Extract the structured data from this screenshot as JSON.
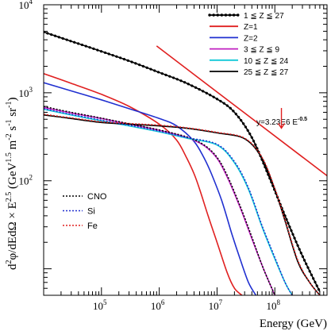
{
  "chart_data": {
    "type": "line",
    "xlabel": "Energy (GeV)",
    "ylabel": {
      "main": "d",
      "sup1": "2",
      "mid": "φ/dEdΩ × E",
      "sup2": "2.5",
      "unit_open": " (GeV",
      "sup3": "1.5",
      "u2": " m",
      "sup4": "-2",
      "u3": " s",
      "sup5": "-1",
      "u4": " sr",
      "sup6": "-1",
      "unit_close": ")"
    },
    "x_scale": "log",
    "y_scale": "log",
    "xlim": [
      10000,
      800000000
    ],
    "ylim": [
      5,
      10000
    ],
    "x_ticks": [
      {
        "value": 100000,
        "base": "10",
        "exp": "5"
      },
      {
        "value": 1000000,
        "base": "10",
        "exp": "6"
      },
      {
        "value": 10000000,
        "base": "10",
        "exp": "7"
      },
      {
        "value": 100000000,
        "base": "10",
        "exp": "8"
      }
    ],
    "y_ticks": [
      {
        "value": 100,
        "base": "10",
        "exp": "2"
      },
      {
        "value": 1000,
        "base": "10",
        "exp": "3"
      },
      {
        "value": 10000,
        "base": "10",
        "exp": "4"
      }
    ],
    "annotation": {
      "text": "y=3.23E6 E",
      "exp": "-0.5",
      "arrow_x": 130000000,
      "arrow_y_from": 700,
      "arrow_y_to": 350
    },
    "legend_top": [
      {
        "label": "1 ≦ Z ≦ 27",
        "color": "#000000",
        "style": "dotted-solid"
      },
      {
        "label": "Z=1",
        "color": "#e02020",
        "style": "solid"
      },
      {
        "label": "Z=2",
        "color": "#2030d0",
        "style": "solid"
      },
      {
        "label": "3 ≦ Z ≦ 9",
        "color": "#c020c0",
        "style": "solid"
      },
      {
        "label": "10 ≦ Z ≦ 24",
        "color": "#10c8d8",
        "style": "solid"
      },
      {
        "label": "25 ≦ Z ≦ 27",
        "color": "#000000",
        "style": "solid"
      }
    ],
    "legend_bottom": [
      {
        "label": "CNO",
        "color": "#000000",
        "style": "dotted"
      },
      {
        "label": "Si",
        "color": "#2030d0",
        "style": "dotted"
      },
      {
        "label": "Fe",
        "color": "#e02020",
        "style": "dotted"
      }
    ],
    "series": [
      {
        "name": "1 ≦ Z ≦ 27",
        "color": "#000000",
        "style": "dotted-solid",
        "x": [
          10000,
          30000,
          100000,
          300000,
          1000000,
          3000000,
          10000000,
          20000000,
          40000000,
          80000000,
          150000000,
          300000000,
          600000000
        ],
        "y": [
          4900,
          3850,
          2950,
          2300,
          1700,
          1280,
          850,
          600,
          310,
          110,
          40,
          14,
          5.5
        ]
      },
      {
        "name": "Z=1",
        "color": "#e02020",
        "style": "solid",
        "x": [
          10000,
          30000,
          100000,
          300000,
          1000000,
          2000000,
          3000000,
          4000000,
          5000000,
          7000000,
          10000000,
          15000000,
          20000000,
          27000000
        ],
        "y": [
          1650,
          1280,
          960,
          700,
          440,
          290,
          180,
          120,
          80,
          40,
          20,
          9,
          6,
          5
        ]
      },
      {
        "name": "Z=2",
        "color": "#2030d0",
        "style": "solid",
        "x": [
          10000,
          30000,
          100000,
          300000,
          1000000,
          2000000,
          4000000,
          6000000,
          8000000,
          12000000,
          18000000,
          25000000,
          35000000,
          47000000
        ],
        "y": [
          1300,
          1050,
          830,
          660,
          510,
          420,
          280,
          180,
          120,
          60,
          25,
          13,
          7,
          5
        ]
      },
      {
        "name": "3 ≦ Z ≦ 9",
        "color": "#c020c0",
        "style": "solid",
        "x": [
          10000,
          30000,
          100000,
          300000,
          1000000,
          3000000,
          6000000,
          10000000,
          15000000,
          25000000,
          40000000,
          60000000,
          80000000,
          100000000
        ],
        "y": [
          680,
          590,
          510,
          440,
          375,
          310,
          250,
          180,
          110,
          50,
          22,
          11,
          7,
          5
        ]
      },
      {
        "name": "10 ≦ Z ≦ 24",
        "color": "#10c8d8",
        "style": "solid",
        "x": [
          10000,
          30000,
          100000,
          300000,
          1000000,
          3000000,
          10000000,
          20000000,
          35000000,
          60000000,
          100000000,
          150000000,
          200000000
        ],
        "y": [
          650,
          560,
          480,
          420,
          360,
          305,
          255,
          160,
          80,
          30,
          13,
          7,
          5
        ]
      },
      {
        "name": "25 ≦ Z ≦ 27",
        "color": "#000000",
        "style": "solid",
        "x": [
          10000,
          30000,
          100000,
          300000,
          1000000,
          3000000,
          10000000,
          30000000,
          60000000,
          100000000,
          150000000,
          250000000,
          400000000,
          600000000
        ],
        "y": [
          560,
          510,
          460,
          440,
          420,
          395,
          350,
          300,
          180,
          80,
          35,
          12,
          7,
          5
        ]
      },
      {
        "name": "y=3.23E6 E^-0.5",
        "color": "#e02020",
        "style": "solid",
        "x": [
          900000,
          800000000
        ],
        "y": [
          3400,
          114
        ]
      },
      {
        "name": "CNO",
        "color": "#000000",
        "style": "dotted",
        "x": [
          10000,
          30000,
          100000,
          300000,
          1000000,
          3000000,
          6000000,
          10000000,
          15000000,
          25000000,
          40000000,
          60000000,
          80000000,
          100000000
        ],
        "y": [
          700,
          600,
          515,
          445,
          378,
          315,
          255,
          185,
          115,
          52,
          23,
          11,
          7,
          5
        ]
      },
      {
        "name": "Si",
        "color": "#2030d0",
        "style": "dotted",
        "x": [
          10000,
          30000,
          100000,
          300000,
          1000000,
          3000000,
          10000000,
          20000000,
          35000000,
          60000000,
          100000000,
          150000000,
          200000000
        ],
        "y": [
          660,
          568,
          488,
          428,
          366,
          310,
          260,
          165,
          83,
          31,
          13.5,
          7,
          5
        ]
      },
      {
        "name": "Fe",
        "color": "#e02020",
        "style": "dotted",
        "x": [
          10000,
          30000,
          100000,
          300000,
          1000000,
          3000000,
          10000000,
          30000000,
          60000000,
          100000000,
          150000000,
          250000000,
          400000000,
          600000000
        ],
        "y": [
          570,
          518,
          468,
          448,
          428,
          400,
          355,
          305,
          185,
          82,
          36,
          12.5,
          7,
          5
        ]
      }
    ]
  }
}
